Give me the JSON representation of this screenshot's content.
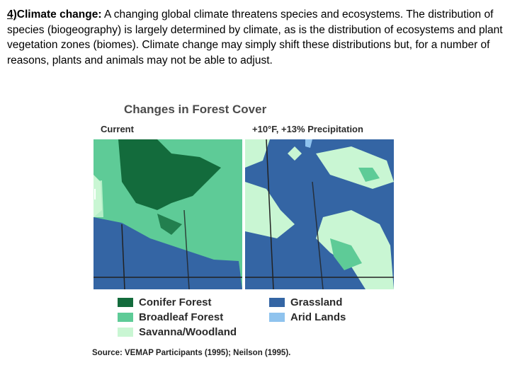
{
  "text": {
    "number": "4)",
    "topic": "Climate change:",
    "body": " A changing global climate threatens species and ecosystems. The distribution of species (biogeography) is largely determined by climate, as is the distribution of ecosystems and plant vegetation zones (biomes).  Climate change may simply shift these distributions but, for a number of reasons, plants and animals may not be able to adjust."
  },
  "figure": {
    "title": "Changes in Forest Cover",
    "left_label": "Current",
    "right_label": "+10°F, +13% Precipitation",
    "legend": [
      {
        "label": "Conifer Forest",
        "color": "#136b3c"
      },
      {
        "label": "Broadleaf Forest",
        "color": "#5ecb97"
      },
      {
        "label": "Savanna/Woodland",
        "color": "#c9f6d3"
      },
      {
        "label": "Grassland",
        "color": "#3465a4"
      },
      {
        "label": "Arid Lands",
        "color": "#8fc3ee"
      }
    ],
    "source": "Source: VEMAP Participants (1995); Neilson (1995)."
  }
}
